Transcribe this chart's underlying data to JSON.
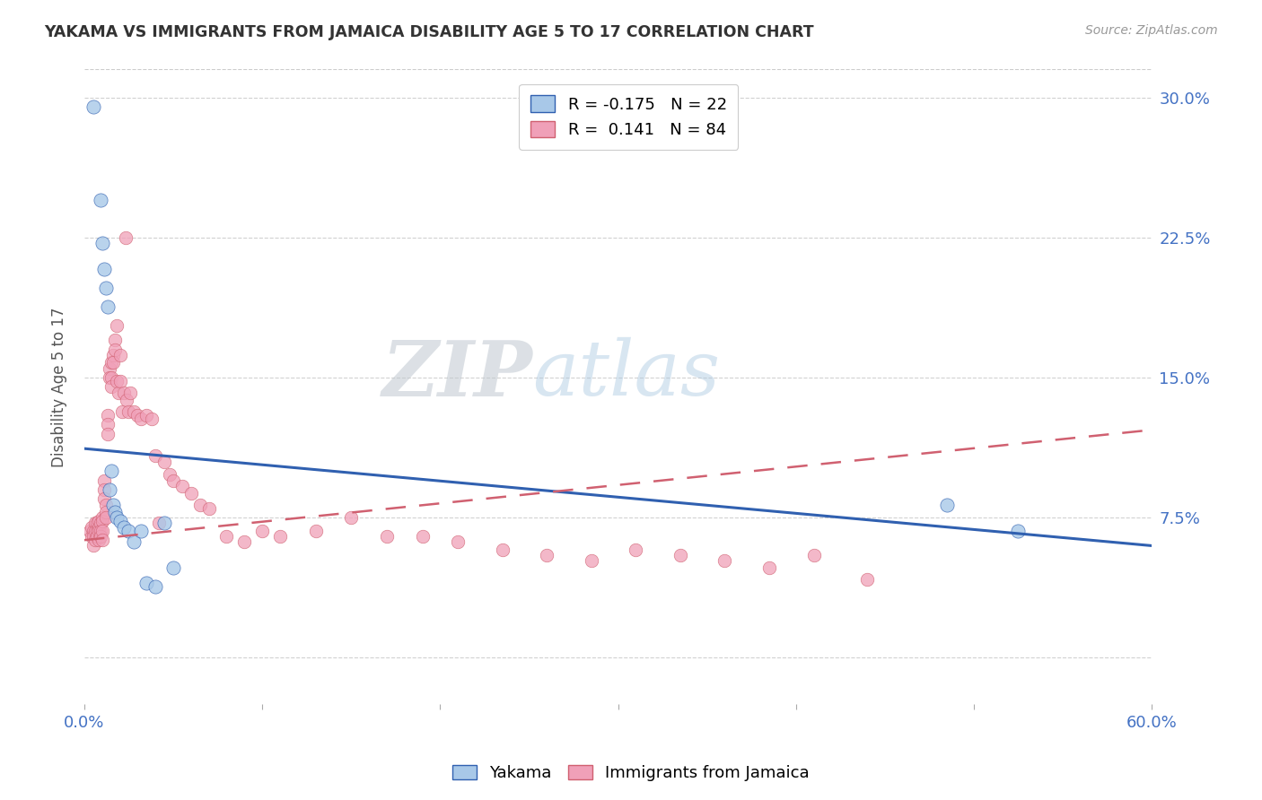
{
  "title": "YAKAMA VS IMMIGRANTS FROM JAMAICA DISABILITY AGE 5 TO 17 CORRELATION CHART",
  "source": "Source: ZipAtlas.com",
  "ylabel": "Disability Age 5 to 17",
  "xlim": [
    0.0,
    0.6
  ],
  "ylim": [
    -0.025,
    0.315
  ],
  "yticks": [
    0.0,
    0.075,
    0.15,
    0.225,
    0.3
  ],
  "ytick_labels": [
    "",
    "7.5%",
    "15.0%",
    "22.5%",
    "30.0%"
  ],
  "xticks": [
    0.0,
    0.1,
    0.2,
    0.3,
    0.4,
    0.5,
    0.6
  ],
  "xtick_labels": [
    "0.0%",
    "",
    "",
    "",
    "",
    "",
    "60.0%"
  ],
  "yakama_color": "#a8c8e8",
  "jamaica_color": "#f0a0b8",
  "trendline_yakama_color": "#3060b0",
  "trendline_jamaica_color": "#d06070",
  "legend_R_yakama": "-0.175",
  "legend_N_yakama": "22",
  "legend_R_jamaica": "0.141",
  "legend_N_jamaica": "84",
  "watermark_zip": "ZIP",
  "watermark_atlas": "atlas",
  "yakama_x": [
    0.005,
    0.009,
    0.01,
    0.011,
    0.012,
    0.013,
    0.014,
    0.015,
    0.016,
    0.017,
    0.018,
    0.02,
    0.022,
    0.025,
    0.028,
    0.032,
    0.035,
    0.04,
    0.045,
    0.05,
    0.485,
    0.525
  ],
  "yakama_y": [
    0.295,
    0.245,
    0.222,
    0.208,
    0.198,
    0.188,
    0.09,
    0.1,
    0.082,
    0.078,
    0.075,
    0.073,
    0.07,
    0.068,
    0.062,
    0.068,
    0.04,
    0.038,
    0.072,
    0.048,
    0.082,
    0.068
  ],
  "jamaica_x": [
    0.003,
    0.004,
    0.004,
    0.005,
    0.005,
    0.005,
    0.006,
    0.006,
    0.006,
    0.007,
    0.007,
    0.007,
    0.008,
    0.008,
    0.008,
    0.008,
    0.009,
    0.009,
    0.009,
    0.01,
    0.01,
    0.01,
    0.01,
    0.011,
    0.011,
    0.011,
    0.012,
    0.012,
    0.012,
    0.013,
    0.013,
    0.013,
    0.014,
    0.014,
    0.015,
    0.015,
    0.015,
    0.016,
    0.016,
    0.017,
    0.017,
    0.018,
    0.018,
    0.019,
    0.02,
    0.02,
    0.021,
    0.022,
    0.023,
    0.024,
    0.025,
    0.026,
    0.028,
    0.03,
    0.032,
    0.035,
    0.038,
    0.04,
    0.042,
    0.045,
    0.048,
    0.05,
    0.055,
    0.06,
    0.065,
    0.07,
    0.08,
    0.09,
    0.1,
    0.11,
    0.13,
    0.15,
    0.17,
    0.19,
    0.21,
    0.235,
    0.26,
    0.285,
    0.31,
    0.335,
    0.36,
    0.385,
    0.41,
    0.44
  ],
  "jamaica_y": [
    0.068,
    0.07,
    0.065,
    0.068,
    0.065,
    0.06,
    0.072,
    0.068,
    0.063,
    0.072,
    0.068,
    0.065,
    0.073,
    0.07,
    0.068,
    0.063,
    0.072,
    0.068,
    0.065,
    0.075,
    0.073,
    0.068,
    0.063,
    0.095,
    0.09,
    0.085,
    0.082,
    0.078,
    0.075,
    0.13,
    0.125,
    0.12,
    0.155,
    0.15,
    0.158,
    0.15,
    0.145,
    0.162,
    0.158,
    0.17,
    0.165,
    0.178,
    0.148,
    0.142,
    0.148,
    0.162,
    0.132,
    0.142,
    0.225,
    0.138,
    0.132,
    0.142,
    0.132,
    0.13,
    0.128,
    0.13,
    0.128,
    0.108,
    0.072,
    0.105,
    0.098,
    0.095,
    0.092,
    0.088,
    0.082,
    0.08,
    0.065,
    0.062,
    0.068,
    0.065,
    0.068,
    0.075,
    0.065,
    0.065,
    0.062,
    0.058,
    0.055,
    0.052,
    0.058,
    0.055,
    0.052,
    0.048,
    0.055,
    0.042
  ],
  "trendline_yakama_x0": 0.0,
  "trendline_yakama_y0": 0.112,
  "trendline_yakama_x1": 0.6,
  "trendline_yakama_y1": 0.06,
  "trendline_jamaica_x0": 0.0,
  "trendline_jamaica_y0": 0.063,
  "trendline_jamaica_x1": 0.6,
  "trendline_jamaica_y1": 0.122
}
